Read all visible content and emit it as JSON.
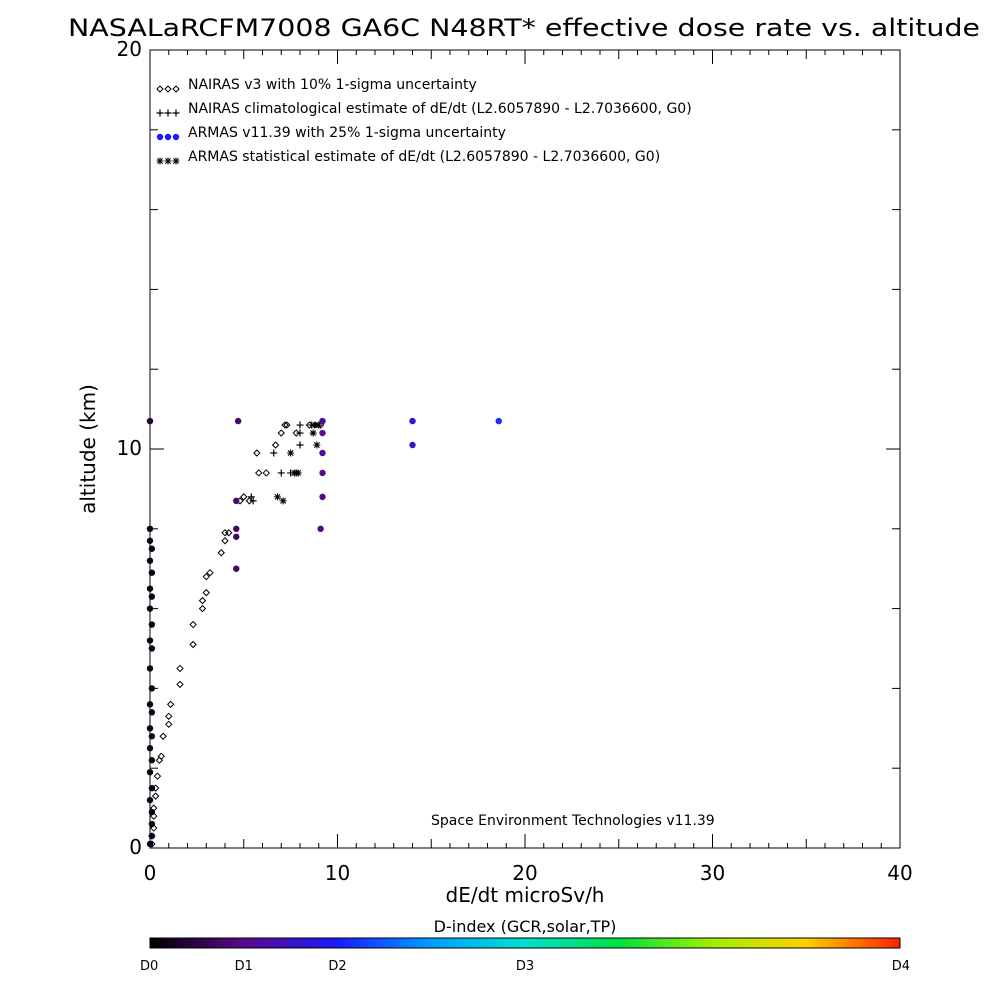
{
  "chart_data": {
    "type": "scatter",
    "title": "NASALaRCFM7008  GA6C N48RT* effective dose rate vs. altitude",
    "xlabel": "dE/dt microSv/h",
    "ylabel": "altitude (km)",
    "xlim": [
      0,
      40
    ],
    "ylim": [
      0,
      20
    ],
    "x_ticks": [
      "0",
      "10",
      "20",
      "30",
      "40"
    ],
    "y_ticks": [
      "0",
      "10",
      "20"
    ],
    "legend_position": "top-left",
    "legend": [
      {
        "symbol": "◇◇◇",
        "label": "NAIRAS v3 with 10% 1-sigma uncertainty"
      },
      {
        "symbol": "+++",
        "label": "NAIRAS climatological estimate of dE/dt (L2.6057890 - L2.7036600, G0)"
      },
      {
        "symbol": "●●●",
        "label": "ARMAS v11.39 with 25% 1-sigma uncertainty"
      },
      {
        "symbol": "✱✱✱",
        "label": "ARMAS statistical estimate of dE/dt (L2.6057890 - L2.7036600, G0)"
      }
    ],
    "annotation": "Space Environment Technologies v11.39",
    "colorbar": {
      "title": "D-index (GCR,solar,TP)",
      "labels": [
        "D0",
        "D1",
        "D2",
        "D3",
        "D4"
      ],
      "label_positions": [
        0,
        0.125,
        0.25,
        0.5,
        1.0
      ]
    },
    "series": [
      {
        "name": "NAIRAS v3 with 10% 1-sigma uncertainty",
        "marker": "diamond",
        "points": [
          [
            0.1,
            0.1
          ],
          [
            0.1,
            0.3
          ],
          [
            0.2,
            0.5
          ],
          [
            0.2,
            0.8
          ],
          [
            0.2,
            1.0
          ],
          [
            0.3,
            1.3
          ],
          [
            0.3,
            1.5
          ],
          [
            0.4,
            1.8
          ],
          [
            0.5,
            2.2
          ],
          [
            0.6,
            2.3
          ],
          [
            0.7,
            2.8
          ],
          [
            1.0,
            3.1
          ],
          [
            1.0,
            3.3
          ],
          [
            1.1,
            3.6
          ],
          [
            1.6,
            4.1
          ],
          [
            1.6,
            4.5
          ],
          [
            2.3,
            5.1
          ],
          [
            2.3,
            5.6
          ],
          [
            2.8,
            6.0
          ],
          [
            2.8,
            6.2
          ],
          [
            3.0,
            6.4
          ],
          [
            3.0,
            6.8
          ],
          [
            3.2,
            6.9
          ],
          [
            3.8,
            7.4
          ],
          [
            4.0,
            7.7
          ],
          [
            4.0,
            7.9
          ],
          [
            4.2,
            7.9
          ],
          [
            4.8,
            8.7
          ],
          [
            5.0,
            8.8
          ],
          [
            5.3,
            8.7
          ],
          [
            5.8,
            9.4
          ],
          [
            6.2,
            9.4
          ],
          [
            5.7,
            9.9
          ],
          [
            6.7,
            10.1
          ],
          [
            7.0,
            10.4
          ],
          [
            7.2,
            10.6
          ],
          [
            7.3,
            10.6
          ],
          [
            7.8,
            10.4
          ],
          [
            8.5,
            10.6
          ],
          [
            8.8,
            10.6
          ],
          [
            9.1,
            10.6
          ]
        ]
      },
      {
        "name": "NAIRAS climatological estimate of dE/dt",
        "marker": "plus",
        "points": [
          [
            5.5,
            8.7
          ],
          [
            5.4,
            8.8
          ],
          [
            7.0,
            9.4
          ],
          [
            7.5,
            9.4
          ],
          [
            6.6,
            9.9
          ],
          [
            8.0,
            10.1
          ],
          [
            8.0,
            10.4
          ],
          [
            8.0,
            10.6
          ],
          [
            8.6,
            10.6
          ]
        ]
      },
      {
        "name": "ARMAS statistical estimate of dE/dt",
        "marker": "asterisk",
        "points": [
          [
            6.8,
            8.8
          ],
          [
            7.1,
            8.7
          ],
          [
            7.7,
            9.4
          ],
          [
            7.8,
            9.4
          ],
          [
            7.9,
            9.4
          ],
          [
            7.5,
            9.9
          ],
          [
            8.9,
            10.1
          ],
          [
            8.7,
            10.4
          ],
          [
            8.8,
            10.6
          ],
          [
            9.0,
            10.6
          ]
        ]
      },
      {
        "name": "ARMAS v11.39 with 25% 1-sigma uncertainty",
        "marker": "dot",
        "points": [
          [
            0.0,
            0.1,
            0.02
          ],
          [
            0.1,
            0.3,
            0.02
          ],
          [
            0.1,
            0.6,
            0.02
          ],
          [
            0.1,
            0.9,
            0.02
          ],
          [
            0.0,
            1.2,
            0.02
          ],
          [
            0.1,
            1.5,
            0.02
          ],
          [
            0.0,
            1.9,
            0.02
          ],
          [
            0.1,
            2.2,
            0.02
          ],
          [
            0.0,
            2.5,
            0.02
          ],
          [
            0.1,
            2.8,
            0.02
          ],
          [
            0.0,
            3.0,
            0.02
          ],
          [
            0.1,
            3.4,
            0.02
          ],
          [
            0.0,
            3.6,
            0.02
          ],
          [
            0.1,
            4.0,
            0.02
          ],
          [
            0.0,
            4.5,
            0.02
          ],
          [
            0.1,
            5.0,
            0.02
          ],
          [
            0.0,
            5.2,
            0.02
          ],
          [
            0.1,
            5.6,
            0.02
          ],
          [
            0.0,
            6.0,
            0.02
          ],
          [
            0.1,
            6.3,
            0.02
          ],
          [
            0.0,
            6.5,
            0.02
          ],
          [
            0.1,
            6.9,
            0.02
          ],
          [
            0.0,
            7.2,
            0.02
          ],
          [
            0.1,
            7.5,
            0.02
          ],
          [
            0.0,
            7.7,
            0.02
          ],
          [
            0.0,
            8.0,
            0.02
          ],
          [
            0.0,
            10.7,
            0.05
          ],
          [
            4.6,
            7.0,
            0.09
          ],
          [
            4.6,
            7.8,
            0.09
          ],
          [
            4.6,
            8.0,
            0.09
          ],
          [
            4.6,
            8.7,
            0.1
          ],
          [
            4.7,
            10.7,
            0.1
          ],
          [
            9.1,
            8.0,
            0.12
          ],
          [
            9.2,
            8.8,
            0.12
          ],
          [
            9.2,
            9.4,
            0.13
          ],
          [
            9.2,
            9.9,
            0.13
          ],
          [
            9.2,
            10.4,
            0.14
          ],
          [
            9.2,
            10.7,
            0.14
          ],
          [
            14.0,
            10.1,
            0.2
          ],
          [
            14.0,
            10.7,
            0.21
          ],
          [
            18.6,
            10.7,
            0.27
          ]
        ]
      }
    ]
  }
}
